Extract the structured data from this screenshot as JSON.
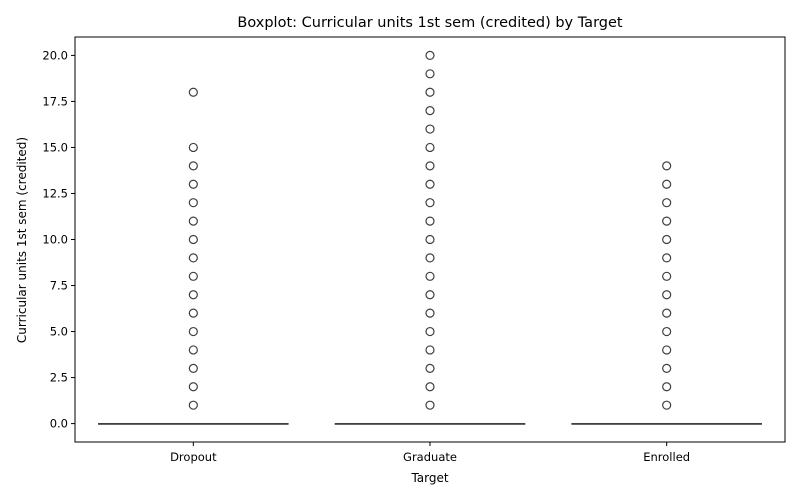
{
  "chart_data": {
    "type": "box",
    "title": "Boxplot: Curricular units 1st sem (credited) by Target",
    "xlabel": "Target",
    "ylabel": "Curricular units 1st sem (credited)",
    "categories": [
      "Dropout",
      "Graduate",
      "Enrolled"
    ],
    "ylim": [
      -1,
      21
    ],
    "yticks": [
      0.0,
      2.5,
      5.0,
      7.5,
      10.0,
      12.5,
      15.0,
      17.5,
      20.0
    ],
    "ytick_labels": [
      "0.0",
      "2.5",
      "5.0",
      "7.5",
      "10.0",
      "12.5",
      "15.0",
      "17.5",
      "20.0"
    ],
    "grid": false,
    "series": [
      {
        "category": "Dropout",
        "q1": 0,
        "median": 0,
        "q3": 0,
        "whisker_low": 0,
        "whisker_high": 0,
        "outliers": [
          1,
          2,
          3,
          4,
          5,
          6,
          7,
          8,
          9,
          10,
          11,
          12,
          13,
          14,
          15,
          18
        ]
      },
      {
        "category": "Graduate",
        "q1": 0,
        "median": 0,
        "q3": 0,
        "whisker_low": 0,
        "whisker_high": 0,
        "outliers": [
          1,
          2,
          3,
          4,
          5,
          6,
          7,
          8,
          9,
          10,
          11,
          12,
          13,
          14,
          15,
          16,
          17,
          18,
          19,
          20
        ]
      },
      {
        "category": "Enrolled",
        "q1": 0,
        "median": 0,
        "q3": 0,
        "whisker_low": 0,
        "whisker_high": 0,
        "outliers": [
          1,
          2,
          3,
          4,
          5,
          6,
          7,
          8,
          9,
          10,
          11,
          12,
          13,
          14
        ]
      }
    ],
    "colors": {
      "box_line": "#3f3f3f",
      "outlier_edge": "#3f3f3f",
      "axis": "#000000"
    }
  }
}
